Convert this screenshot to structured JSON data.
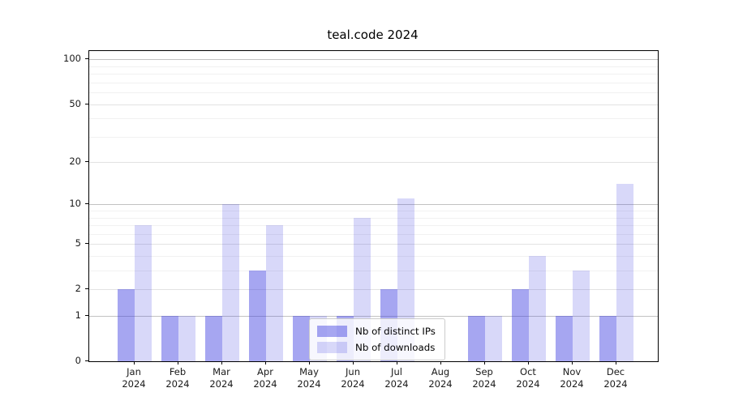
{
  "chart_data": {
    "type": "bar",
    "title": "teal.code 2024",
    "x_tick_year": "2024",
    "categories": [
      "Jan",
      "Feb",
      "Mar",
      "Apr",
      "May",
      "Jun",
      "Jul",
      "Aug",
      "Sep",
      "Oct",
      "Nov",
      "Dec"
    ],
    "series": [
      {
        "key": "distinct-ips",
        "name": "Nb of distinct IPs",
        "color": "rgba(60,60,225,0.46)",
        "values": [
          2,
          1,
          1,
          3,
          1,
          1,
          2,
          0,
          1,
          2,
          1,
          1
        ]
      },
      {
        "key": "downloads",
        "name": "Nb of downloads",
        "color": "rgba(60,60,225,0.20)",
        "values": [
          7,
          1,
          10,
          7,
          1,
          8,
          11,
          0,
          1,
          4,
          3,
          14
        ]
      }
    ],
    "y_axis": {
      "scale": "log1p",
      "ticks": [
        0,
        1,
        2,
        5,
        10,
        20,
        50,
        100
      ],
      "decade_ticks": [
        1,
        10,
        100
      ],
      "minor_ticks": [
        3,
        4,
        6,
        7,
        8,
        9,
        30,
        40,
        60,
        70,
        80,
        90
      ],
      "max_log": 2.06,
      "ylim": [
        0,
        113
      ]
    },
    "legend": {
      "position": "lower center"
    },
    "grid": true,
    "colors": {
      "grid_decade": "#c2c2c2",
      "grid_mid": "#e2e2e2",
      "grid_minor": "#f1f1f1",
      "spine": "#000000",
      "text": "#1a1a1a",
      "legend_border": "#cccccc",
      "legend_bg": "rgba(255,255,255,0.8)"
    }
  }
}
